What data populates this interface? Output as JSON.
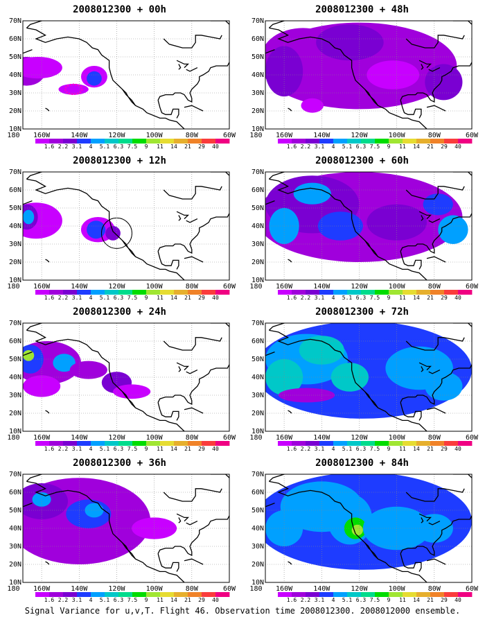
{
  "panels": [
    {
      "title": "2008012300 + 00h"
    },
    {
      "title": "2008012300 + 48h"
    },
    {
      "title": "2008012300 + 12h"
    },
    {
      "title": "2008012300 + 60h"
    },
    {
      "title": "2008012300 + 24h"
    },
    {
      "title": "2008012300 + 72h"
    },
    {
      "title": "2008012300 + 36h"
    },
    {
      "title": "2008012300 + 84h"
    }
  ],
  "lat_labels": [
    "10N",
    "20N",
    "30N",
    "40N",
    "50N",
    "60N",
    "70N"
  ],
  "lon_labels": [
    "180",
    "160W",
    "140W",
    "120W",
    "100W",
    "80W",
    "60W"
  ],
  "colorbar": {
    "labels": [
      "1.6",
      "2.2",
      "3.1",
      "4",
      "5.1",
      "6.3",
      "7.5",
      "9",
      "11",
      "14",
      "21",
      "29",
      "40"
    ],
    "colors": [
      "#c800ff",
      "#a000dc",
      "#7a00d2",
      "#1e3cff",
      "#00a0ff",
      "#00c8c8",
      "#00dc8c",
      "#00dc00",
      "#a0e632",
      "#e6dc32",
      "#e6af2d",
      "#f08228",
      "#fa3c3c",
      "#f00082"
    ]
  },
  "footer": "Signal Variance for u,v,T. Flight 46. Observation time 2008012300. 2008012000 ensemble."
}
